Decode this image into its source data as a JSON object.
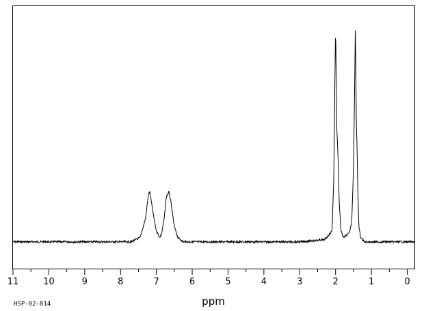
{
  "chart_data": {
    "type": "line",
    "title": "",
    "xlabel": "ppm",
    "ylabel": "",
    "x_reversed": true,
    "xlim": [
      11.0,
      -0.2
    ],
    "ylim": [
      0,
      1
    ],
    "grid": false,
    "major_ticks": [
      11,
      10,
      9,
      8,
      7,
      6,
      5,
      4,
      3,
      2,
      1,
      0
    ],
    "tick_labels": [
      "11",
      "10",
      "9",
      "8",
      "7",
      "6",
      "5",
      "4",
      "3",
      "2",
      "1",
      "0"
    ],
    "series": [
      {
        "x": [
          11.0,
          7.7,
          7.45,
          7.3,
          7.22,
          7.18,
          7.1,
          7.0,
          6.9,
          6.85,
          6.78,
          6.72,
          6.65,
          6.6,
          6.5,
          6.4,
          6.25,
          6.0,
          3.0,
          2.3,
          2.1,
          2.05,
          2.02,
          2.0,
          1.99,
          1.97,
          1.95,
          1.93,
          1.9,
          1.85,
          1.78,
          1.7,
          1.62,
          1.55,
          1.5,
          1.47,
          1.45,
          1.44,
          1.42,
          1.4,
          1.38,
          1.35,
          1.3,
          1.2,
          1.0,
          -0.2
        ],
        "values": [
          0.01,
          0.01,
          0.03,
          0.12,
          0.23,
          0.24,
          0.15,
          0.06,
          0.03,
          0.05,
          0.12,
          0.22,
          0.24,
          0.2,
          0.08,
          0.03,
          0.01,
          0.01,
          0.01,
          0.02,
          0.06,
          0.3,
          0.75,
          1.0,
          0.88,
          0.55,
          0.48,
          0.4,
          0.2,
          0.06,
          0.03,
          0.04,
          0.05,
          0.1,
          0.35,
          0.7,
          0.99,
          0.9,
          0.55,
          0.45,
          0.25,
          0.08,
          0.03,
          0.01,
          0.01,
          0.01
        ]
      }
    ]
  },
  "footnote": "HSP-02-814"
}
